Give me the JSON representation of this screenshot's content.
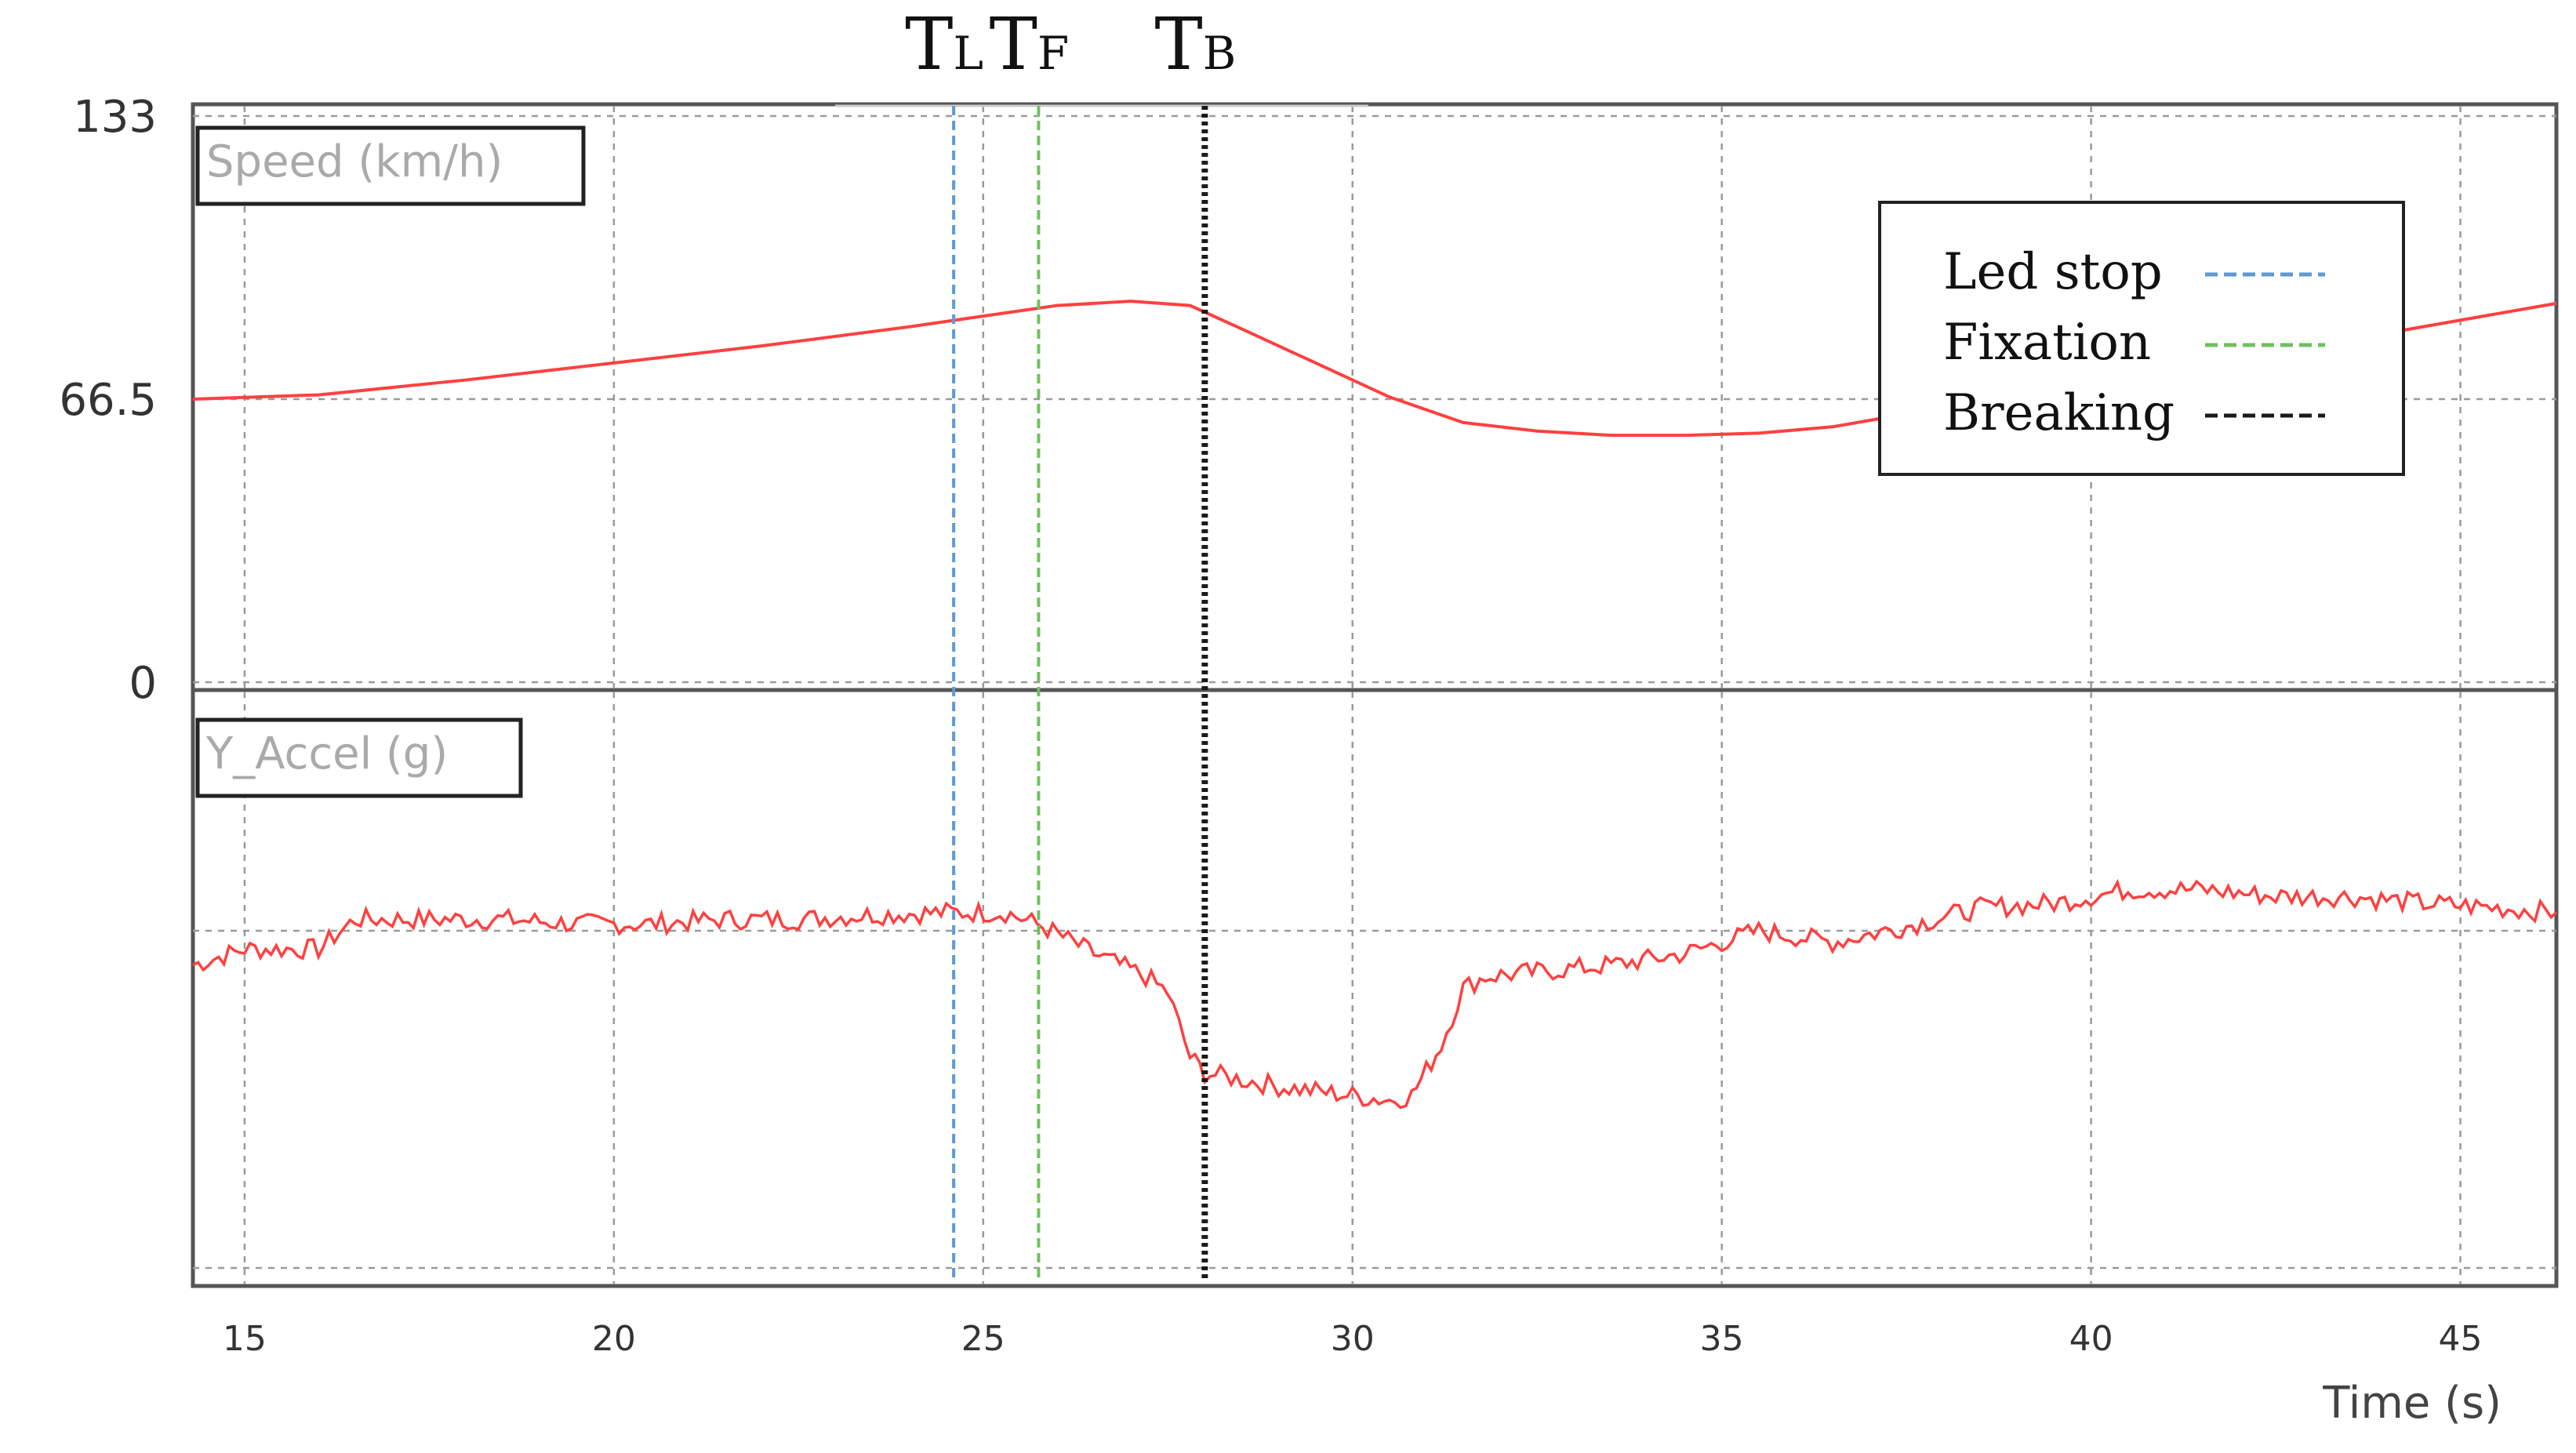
{
  "chart_data": [
    {
      "type": "line",
      "panel_label": "Speed (km/h)",
      "x_range": [
        14.3,
        46.3
      ],
      "ylim": [
        0,
        133
      ],
      "y_ticks": [
        0,
        66.5,
        133
      ],
      "y_tick_labels": [
        "0",
        "66.5",
        "133"
      ],
      "grid": true,
      "series": [
        {
          "color": "#ff4040",
          "x": [
            14.3,
            16,
            18,
            20,
            22,
            24,
            25,
            26,
            27,
            27.8,
            28.5,
            29.5,
            30.5,
            31.5,
            32.5,
            33.5,
            34.5,
            35.5,
            36.5,
            37.5,
            38.5,
            40,
            42,
            44,
            46.3
          ],
          "y": [
            66.5,
            67.5,
            71,
            75,
            79,
            83.5,
            86,
            88.5,
            89.5,
            88.5,
            83,
            75,
            67,
            61,
            59,
            58,
            58,
            58.5,
            60,
            63,
            66,
            71,
            76,
            82,
            89
          ]
        }
      ]
    },
    {
      "type": "line",
      "panel_label": "Y_Accel (g)",
      "x_range": [
        14.3,
        46.3
      ],
      "grid": true,
      "series": [
        {
          "color": "#ff4040",
          "x": [
            14.3,
            15,
            16,
            16.5,
            17.5,
            18.5,
            19.5,
            20.5,
            21.5,
            22.5,
            23.5,
            24.5,
            25.3,
            25.8,
            26.5,
            27.2,
            27.5,
            27.8,
            28.0,
            28.5,
            29.0,
            29.5,
            30.0,
            30.5,
            30.8,
            31.2,
            31.5,
            31.8,
            32.5,
            33.5,
            34.5,
            35.5,
            36.5,
            37.5,
            38.5,
            39.5,
            40.5,
            41.5,
            42.5,
            43.5,
            44.5,
            45.5,
            46.3
          ],
          "y": [
            -0.15,
            -0.08,
            -0.08,
            0.05,
            0.05,
            0.05,
            0.03,
            0.03,
            0.05,
            0.05,
            0.07,
            0.08,
            0.08,
            0.02,
            -0.1,
            -0.2,
            -0.27,
            -0.55,
            -0.62,
            -0.65,
            -0.68,
            -0.7,
            -0.72,
            -0.74,
            -0.72,
            -0.5,
            -0.25,
            -0.2,
            -0.18,
            -0.15,
            -0.1,
            0.0,
            -0.05,
            0.02,
            0.1,
            0.12,
            0.18,
            0.18,
            0.15,
            0.15,
            0.12,
            0.1,
            0.08
          ]
        }
      ]
    }
  ],
  "x_axis": {
    "label": "Time (s)",
    "ticks": [
      15,
      20,
      25,
      30,
      35,
      40,
      45
    ],
    "tick_labels": [
      "15",
      "20",
      "25",
      "30",
      "35",
      "40",
      "45"
    ]
  },
  "markers": [
    {
      "name": "TL",
      "main": "T",
      "sub": "L",
      "x": 24.6,
      "color": "#5b9bd5",
      "style": "dashed"
    },
    {
      "name": "TF",
      "main": "T",
      "sub": "F",
      "x": 25.75,
      "color": "#70c060",
      "style": "dashed"
    },
    {
      "name": "TB",
      "main": "T",
      "sub": "B",
      "x": 28.0,
      "color": "#1a1a1a",
      "style": "dotted"
    }
  ],
  "legend": {
    "position": "top-right",
    "entries": [
      {
        "label": "Led stop",
        "color": "#5b9bd5"
      },
      {
        "label": "Fixation",
        "color": "#70c060"
      },
      {
        "label": "Breaking",
        "color": "#1a1a1a"
      }
    ]
  }
}
